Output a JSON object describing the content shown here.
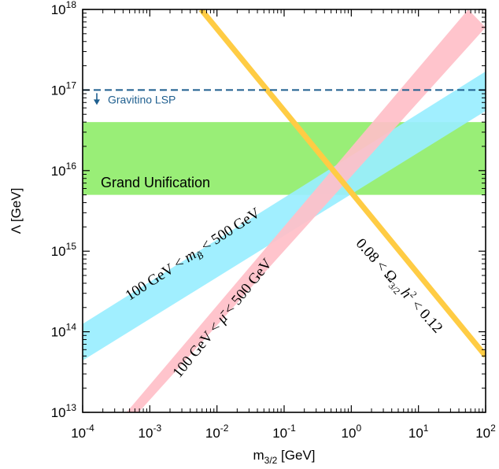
{
  "chart_data": {
    "type": "line",
    "x_scale": "log",
    "y_scale": "log",
    "x_log_range": [
      -4,
      2
    ],
    "y_log_range": [
      13,
      18
    ],
    "x_tick_exponents": [
      -4,
      -3,
      -2,
      -1,
      0,
      1,
      2
    ],
    "y_tick_exponents": [
      13,
      14,
      15,
      16,
      17,
      18
    ],
    "tick_base": "10",
    "xlabel_main": "m",
    "xlabel_sub": "3/2",
    "xlabel_unit": " [GeV]",
    "ylabel": "Λ [GeV]",
    "regions": [
      {
        "name": "Grand Unification",
        "label": "Grand Unification",
        "color": "#99ee77",
        "y_range": [
          5000000000000000.0,
          4e+16
        ]
      }
    ],
    "hlines": [
      {
        "name": "Gravitino LSP",
        "label": "Gravitino LSP",
        "y": 1e+17,
        "color": "#1f5f8f",
        "style": "dashed"
      }
    ],
    "bands": [
      {
        "name": "bino mass",
        "label": "100 GeV < m_B̃ < 500 GeV",
        "label_parts": [
          "100 GeV < ",
          "m",
          "B̃",
          " < 500 GeV"
        ],
        "color": "#99eeff",
        "lower": [
          [
            0.0001,
            44000000000000.0
          ],
          [
            100,
            5.5e+16
          ]
        ],
        "upper": [
          [
            0.0001,
            125000000000000.0
          ],
          [
            100,
            1.7e+17
          ]
        ]
      },
      {
        "name": "mu parameter",
        "label": "100 GeV < μ̄ < 500 GeV",
        "label_parts": [
          "100 GeV < ",
          "μ̄",
          " < 500 GeV"
        ],
        "color": "#ffbfc8",
        "lower": [
          [
            0.00068,
            10000000000000.0
          ],
          [
            100,
            6e+17
          ]
        ],
        "upper": [
          [
            0.00045,
            10000000000000.0
          ],
          [
            55,
            1e+18
          ]
        ]
      }
    ],
    "lines": [
      {
        "name": "gravitino relic density",
        "label": "0.08 < Ω_3/2 h² < 0.12",
        "label_parts": [
          "0.08 < Ω",
          "3/2",
          "h",
          "2",
          " < 0.12"
        ],
        "color": "#ffcc44",
        "points": [
          [
            0.0058,
            1e+18
          ],
          [
            100,
            50000000000000.0
          ]
        ]
      }
    ]
  }
}
